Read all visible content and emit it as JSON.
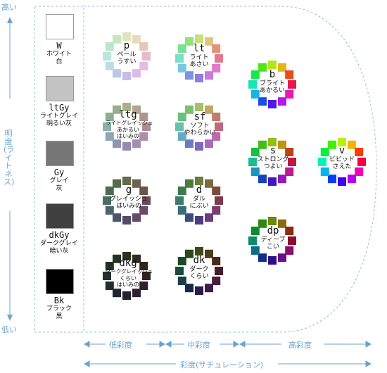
{
  "colors": {
    "accent": "#6aa3cf",
    "dash": "#8fbfe0"
  },
  "lightness_axis": {
    "high": "高い",
    "title": "明度(ライトネス)",
    "low": "低い"
  },
  "chroma_axis": {
    "low": "低彩度",
    "mid": "中彩度",
    "high": "高彩度",
    "title": "彩度(サチュレーション)"
  },
  "grays": [
    {
      "code": "W",
      "name": "ホワイト",
      "kanji": "白",
      "color": "#ffffff"
    },
    {
      "code": "ltGy",
      "name": "ライトグレイ",
      "kanji": "明るい灰",
      "color": "#c4c4c4"
    },
    {
      "code": "Gy",
      "name": "グレイ",
      "kanji": "灰",
      "color": "#777777"
    },
    {
      "code": "dkGy",
      "name": "ダークグレイ",
      "kanji": "暗い灰",
      "color": "#404040"
    },
    {
      "code": "Bk",
      "name": "ブラック",
      "kanji": "黒",
      "color": "#000000"
    }
  ],
  "tones": [
    {
      "code": "p",
      "name": "ペール",
      "desc": "うすい",
      "light": 0.82,
      "sat": 0.45
    },
    {
      "code": "lt",
      "name": "ライト",
      "desc": "あさい",
      "light": 0.68,
      "sat": 0.62
    },
    {
      "code": "b",
      "name": "ブライト",
      "desc": "あかるい",
      "light": 0.5,
      "sat": 0.8
    },
    {
      "code": "ltg",
      "name": "ライトグレイッシュ",
      "desc": "あかるい",
      "desc2": "はいみの",
      "light": 0.62,
      "sat": 0.18
    },
    {
      "code": "sf",
      "name": "ソフト",
      "desc": "やわらかい",
      "light": 0.58,
      "sat": 0.4
    },
    {
      "code": "s",
      "name": "ストロング",
      "desc": "つよい",
      "light": 0.42,
      "sat": 0.78
    },
    {
      "code": "v",
      "name": "ビビッド",
      "desc": "さえた",
      "light": 0.48,
      "sat": 0.98
    },
    {
      "code": "g",
      "name": "グレイッシュ",
      "desc": "はいみの",
      "light": 0.36,
      "sat": 0.18
    },
    {
      "code": "d",
      "name": "ダル",
      "desc": "にぶい",
      "light": 0.36,
      "sat": 0.35
    },
    {
      "code": "dp",
      "name": "ディープ",
      "desc": "こい",
      "light": 0.3,
      "sat": 0.8
    },
    {
      "code": "dkg",
      "name": "ダークグレイッシュ",
      "desc": "くらい",
      "desc2": "はいみの",
      "light": 0.16,
      "sat": 0.2
    },
    {
      "code": "dk",
      "name": "ダーク",
      "desc": "くらい",
      "light": 0.2,
      "sat": 0.45
    }
  ]
}
